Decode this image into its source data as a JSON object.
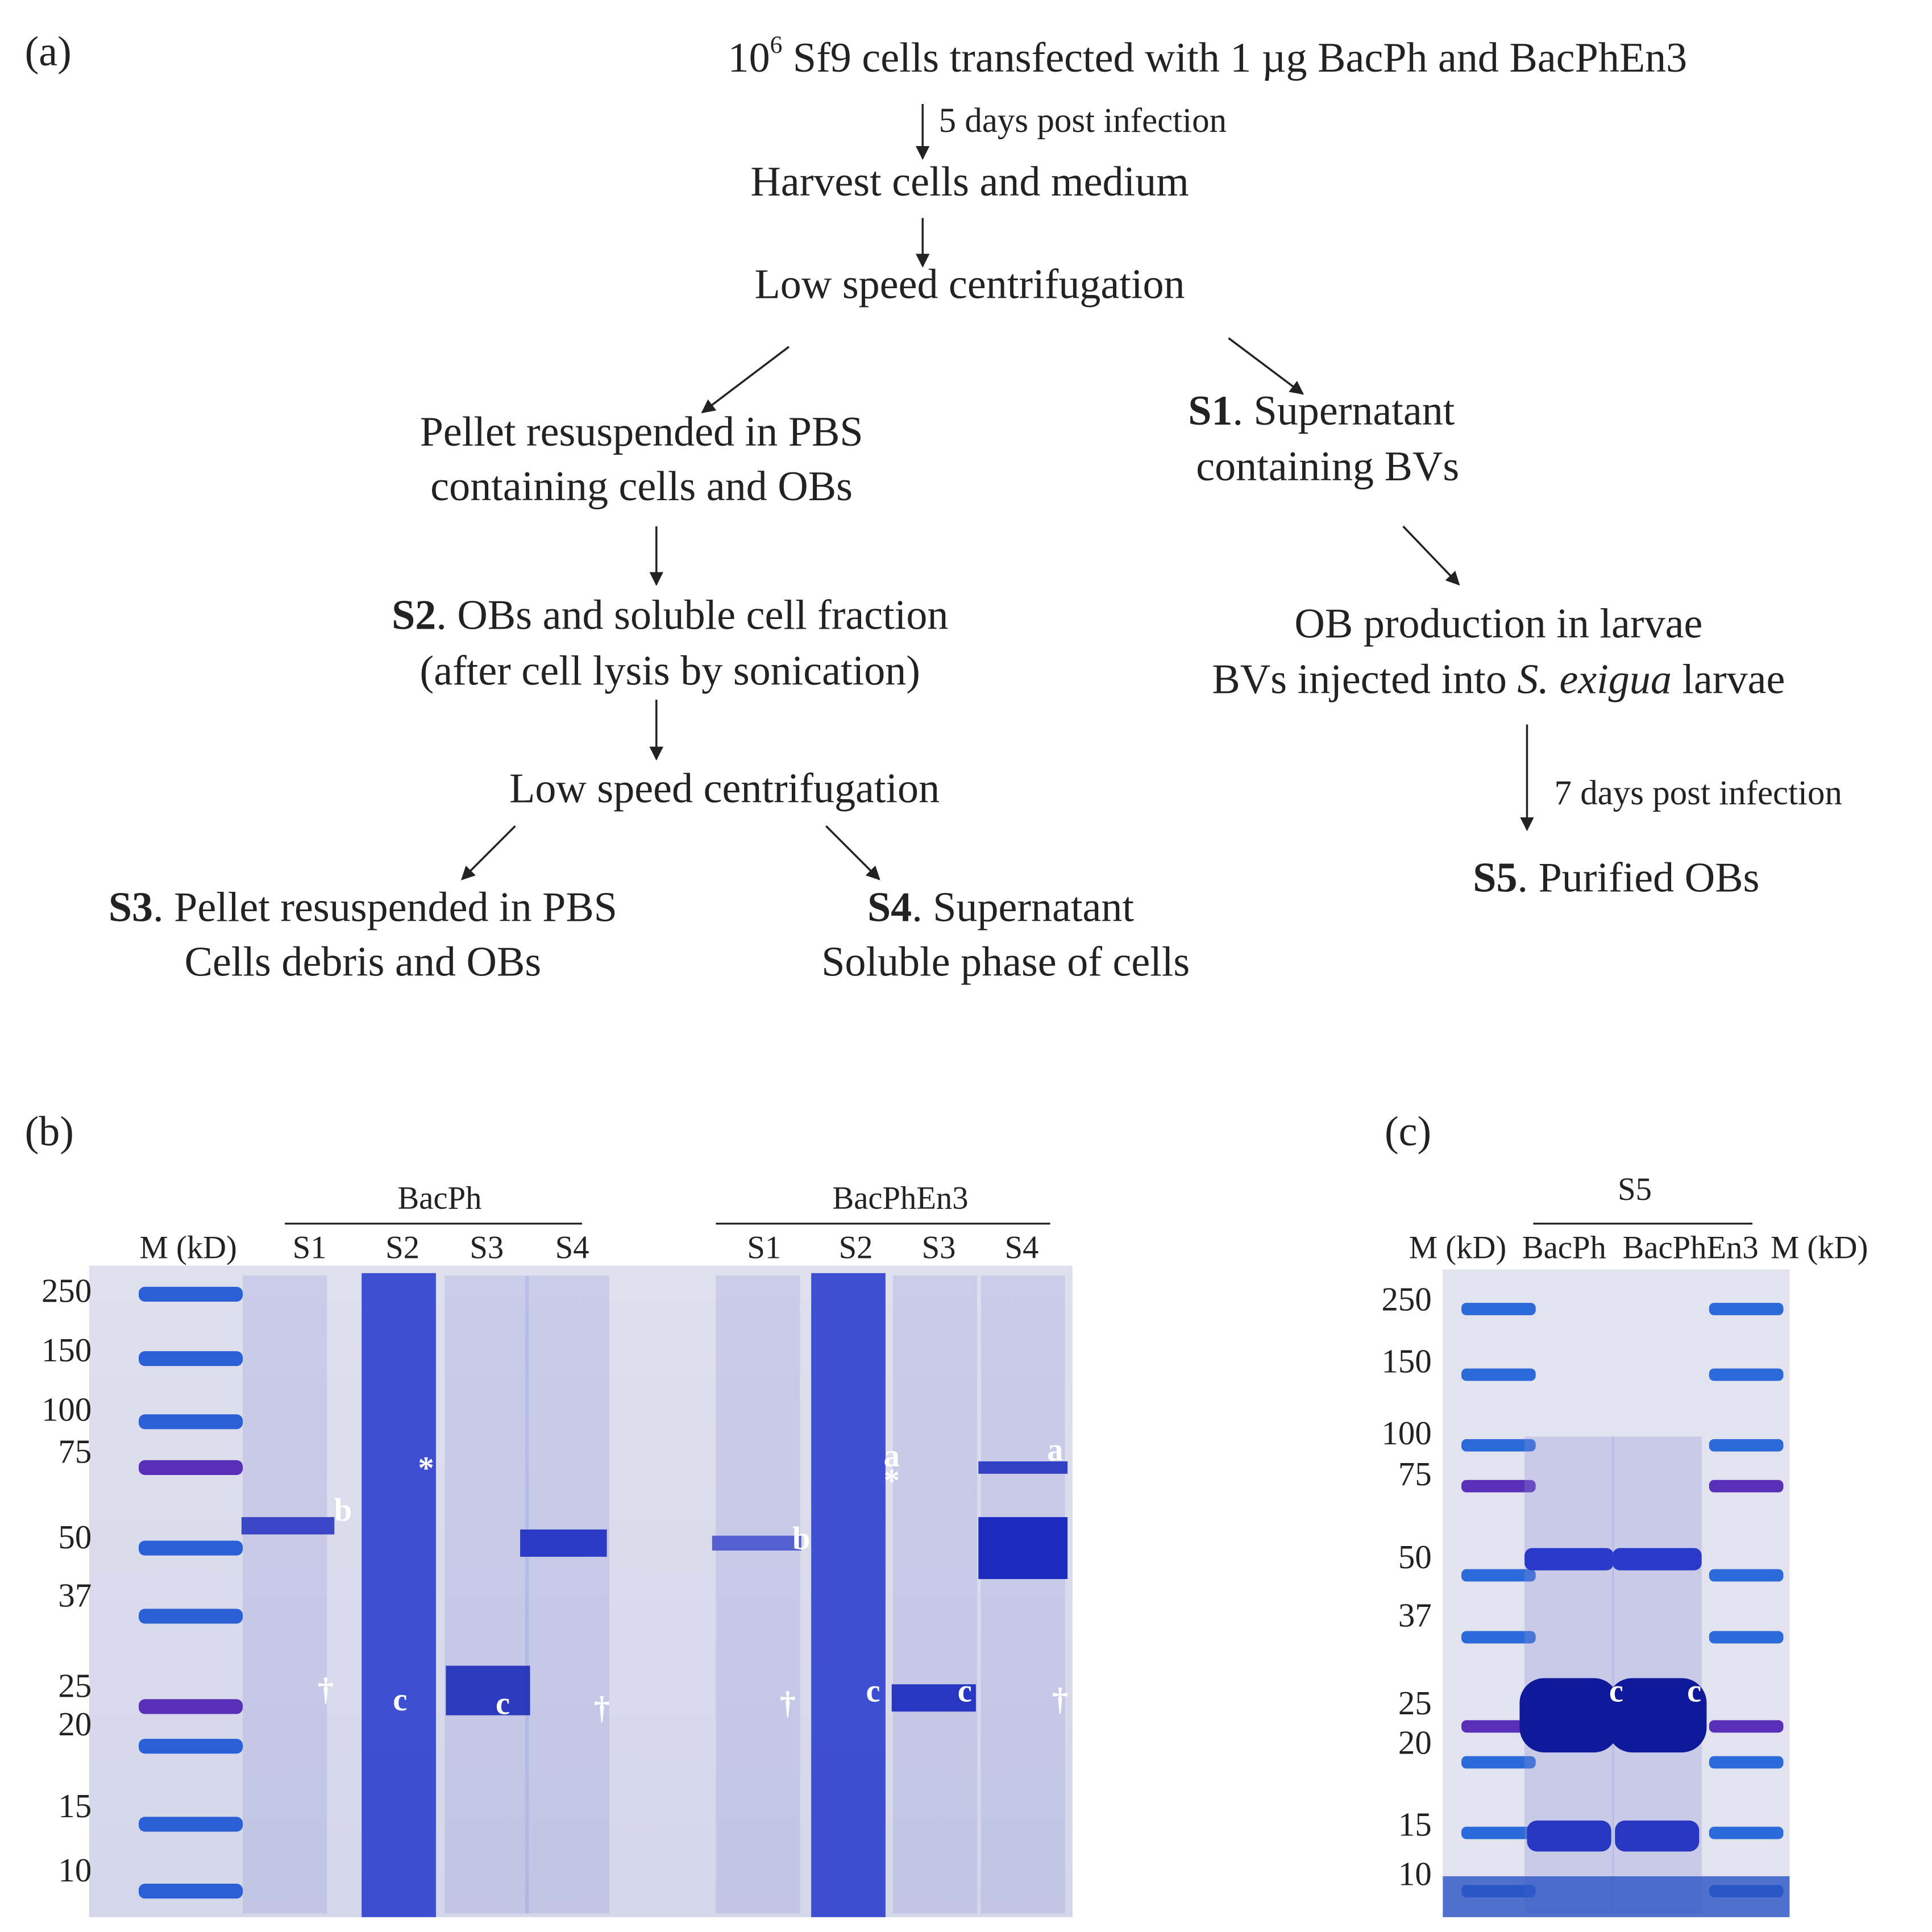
{
  "panel_a": {
    "label": "(a)",
    "start": {
      "base": "10",
      "sup": "6",
      "rest": " Sf9 cells transfected with 1 µg BacPh and BacPhEn3"
    },
    "step1_note": "5 days post infection",
    "harvest": "Harvest cells and medium",
    "centrifugation1": "Low speed centrifugation",
    "pellet": [
      "Pellet resuspended in PBS",
      "containing cells and OBs"
    ],
    "s1": {
      "id": "S1",
      "line1": ". Supernatant",
      "line2": "containing BVs"
    },
    "s2": {
      "id": "S2",
      "line1": ". OBs and soluble cell fraction",
      "line2": "(after cell lysis by sonication)"
    },
    "larvae": {
      "line1": "OB production in larvae",
      "line2_pre": "BVs injected into ",
      "line2_italic": "S. exigua",
      "line2_post": " larvae"
    },
    "step2_note": "7 days post infection",
    "centrifugation2": "Low speed centrifugation",
    "s3": {
      "id": "S3",
      "line1": ". Pellet resuspended in PBS",
      "line2": "Cells debris and OBs"
    },
    "s4": {
      "id": "S4",
      "line1": ". Supernatant",
      "line2": "Soluble phase of cells"
    },
    "s5": {
      "id": "S5",
      "line1": ". Purified OBs"
    }
  },
  "panel_b": {
    "label": "(b)",
    "groups": [
      "BacPh",
      "BacPhEn3"
    ],
    "marker_lane": "M (kD)",
    "lanes": [
      "S1",
      "S2",
      "S3",
      "S4",
      "S1",
      "S2",
      "S3",
      "S4"
    ],
    "markers": [
      "250",
      "150",
      "100",
      "75",
      "50",
      "37",
      "25",
      "20",
      "15",
      "10"
    ],
    "band_marks": [
      "b",
      "†",
      "*",
      "c",
      "c",
      "†",
      "b",
      "†",
      "a",
      "*",
      "c",
      "c",
      "a",
      "†"
    ]
  },
  "panel_c": {
    "label": "(c)",
    "group": "S5",
    "lanes": [
      "M (kD)",
      "BacPh",
      "BacPhEn3",
      "M (kD)"
    ],
    "markers": [
      "250",
      "150",
      "100",
      "75",
      "50",
      "37",
      "25",
      "20",
      "15",
      "10"
    ],
    "band_marks": [
      "c",
      "c"
    ]
  }
}
